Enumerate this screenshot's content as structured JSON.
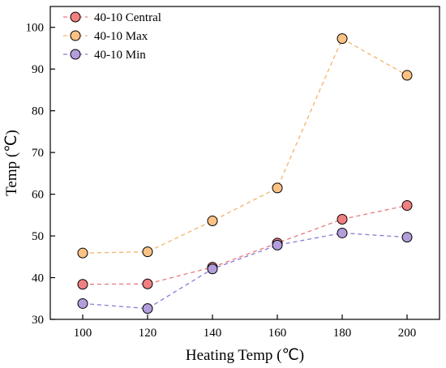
{
  "chart_data": {
    "type": "line",
    "xlabel": "Heating Temp (℃)",
    "ylabel": "Temp (℃)",
    "x": [
      100,
      120,
      140,
      160,
      180,
      200
    ],
    "xlim": [
      90,
      210
    ],
    "ylim": [
      30,
      105
    ],
    "xticks": [
      100,
      120,
      140,
      160,
      180,
      200
    ],
    "yticks": [
      30,
      40,
      50,
      60,
      70,
      80,
      90,
      100
    ],
    "grid": false,
    "legend_position": "top-left",
    "series": [
      {
        "name": "40-10 Central",
        "values": [
          38.4,
          38.5,
          42.5,
          48.3,
          54.0,
          57.3
        ],
        "line_color": "#e87a7a",
        "marker_color": "#f08080"
      },
      {
        "name": "40-10 Max",
        "values": [
          45.9,
          46.2,
          53.6,
          61.5,
          97.3,
          88.5
        ],
        "line_color": "#f5b26b",
        "marker_color": "#fcc285"
      },
      {
        "name": "40-10 Min",
        "values": [
          33.8,
          32.6,
          42.1,
          47.8,
          50.7,
          49.7
        ],
        "line_color": "#8a7ad6",
        "marker_color": "#b39ddb"
      }
    ]
  }
}
